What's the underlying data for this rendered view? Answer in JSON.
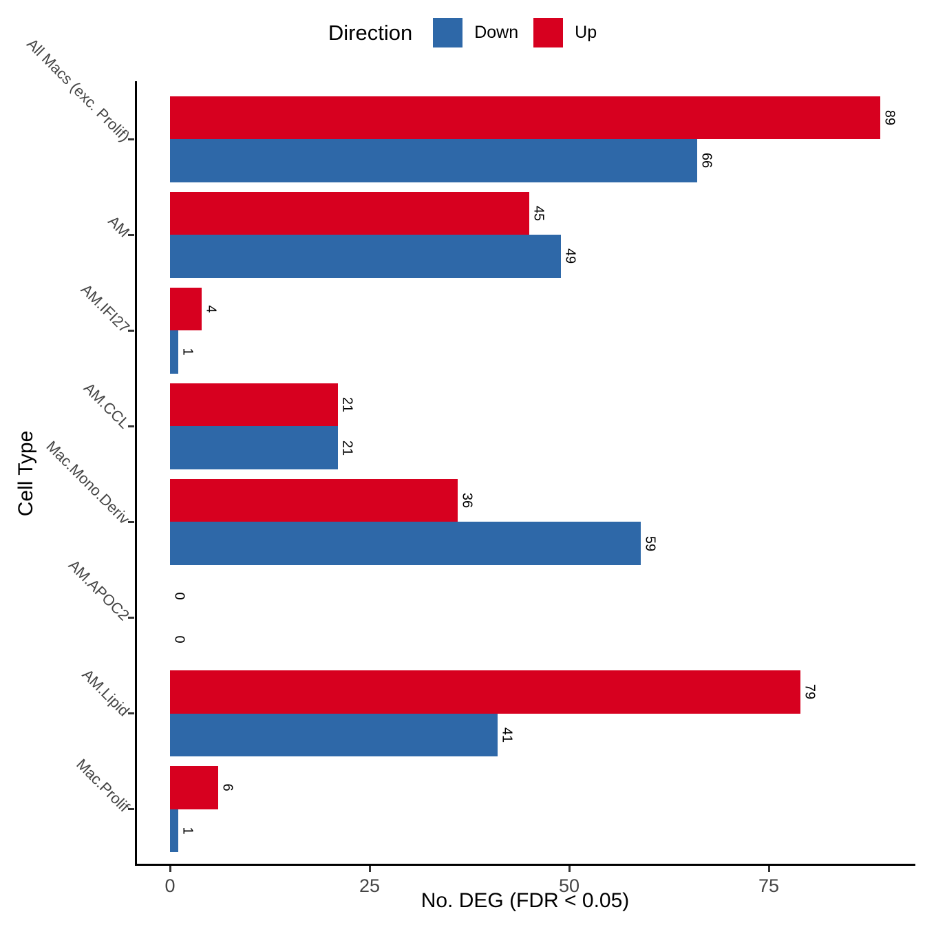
{
  "chart_data": {
    "type": "bar",
    "orientation": "horizontal",
    "legend_title": "Direction",
    "legend_position": "top",
    "xlabel": "No. DEG (FDR < 0.05)",
    "ylabel": "Cell Type",
    "x_ticks": [
      0,
      25,
      50,
      75
    ],
    "xlim": [
      -4.5,
      93.5
    ],
    "grid": false,
    "categories": [
      "All Macs (exc. Prolif)",
      "AM",
      "AM.IFI27",
      "AM.CCL",
      "Mac.Mono.Deriv",
      "AM.APOC2",
      "AM.Lipid",
      "Mac.Prolif"
    ],
    "series": [
      {
        "name": "Down",
        "color": "#2E68A8",
        "values": [
          66,
          49,
          1,
          21,
          59,
          0,
          41,
          1
        ]
      },
      {
        "name": "Up",
        "color": "#D7001F",
        "values": [
          89,
          45,
          4,
          21,
          36,
          0,
          79,
          6
        ]
      }
    ],
    "legend": [
      {
        "label": "Down",
        "color": "#2E68A8"
      },
      {
        "label": "Up",
        "color": "#D7001F"
      }
    ],
    "bar_value_labels": {
      "Up": [
        89,
        45,
        4,
        21,
        36,
        0,
        79,
        6
      ],
      "Down": [
        66,
        49,
        1,
        21,
        59,
        0,
        41,
        1
      ]
    }
  }
}
